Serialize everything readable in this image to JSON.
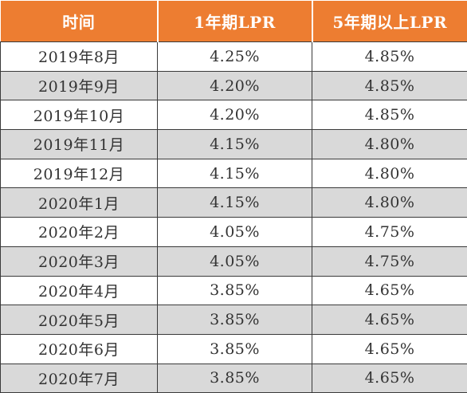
{
  "table": {
    "headers": [
      "时间",
      "1年期LPR",
      "5年期以上LPR"
    ],
    "rows": [
      [
        "2019年8月",
        "4.25%",
        "4.85%"
      ],
      [
        "2019年9月",
        "4.20%",
        "4.85%"
      ],
      [
        "2019年10月",
        "4.20%",
        "4.85%"
      ],
      [
        "2019年11月",
        "4.15%",
        "4.80%"
      ],
      [
        "2019年12月",
        "4.15%",
        "4.80%"
      ],
      [
        "2020年1月",
        "4.15%",
        "4.80%"
      ],
      [
        "2020年2月",
        "4.05%",
        "4.75%"
      ],
      [
        "2020年3月",
        "4.05%",
        "4.75%"
      ],
      [
        "2020年4月",
        "3.85%",
        "4.65%"
      ],
      [
        "2020年5月",
        "3.85%",
        "4.65%"
      ],
      [
        "2020年6月",
        "3.85%",
        "4.65%"
      ],
      [
        "2020年7月",
        "3.85%",
        "4.65%"
      ]
    ]
  },
  "colors": {
    "header_bg": "#ed7d31",
    "header_text": "#ffffff",
    "stripe_bg": "#d9d9d9",
    "row_bg": "#ffffff"
  }
}
